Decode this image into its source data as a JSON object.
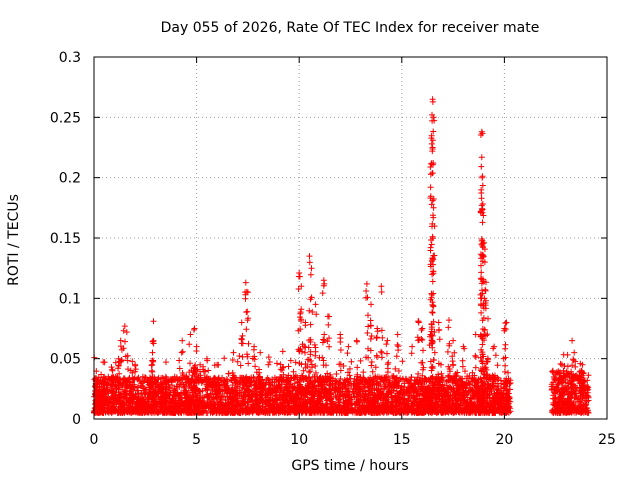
{
  "chart_data": {
    "type": "scatter",
    "title": "Day 055 of 2026, Rate Of TEC Index for receiver mate",
    "xlabel": "GPS time / hours",
    "ylabel": "ROTI / TECUs",
    "xlim": [
      0,
      25
    ],
    "ylim": [
      0,
      0.3
    ],
    "xticks": [
      0,
      5,
      10,
      15,
      20,
      25
    ],
    "yticks": [
      0,
      0.05,
      0.1,
      0.15,
      0.2,
      0.25,
      0.3
    ],
    "xtick_labels": [
      "0",
      "5",
      "10",
      "15",
      "20",
      "25"
    ],
    "ytick_labels": [
      "0",
      "0.05",
      "0.1",
      "0.15",
      "0.2",
      "0.25",
      "0.3"
    ],
    "grid": true,
    "marker": "+",
    "color": "#ff0000",
    "series": [
      {
        "name": "ROTI",
        "segments": [
          {
            "x_range": [
              0.0,
              20.3
            ],
            "base": [
              0.005,
              0.035
            ]
          },
          {
            "x_range": [
              22.3,
              24.1
            ],
            "base": [
              0.005,
              0.04
            ]
          }
        ],
        "peaks": [
          {
            "x": 0.1,
            "y": 0.032
          },
          {
            "x": 0.9,
            "y": 0.04
          },
          {
            "x": 1.2,
            "y": 0.05
          },
          {
            "x": 1.3,
            "y": 0.065
          },
          {
            "x": 1.5,
            "y": 0.077
          },
          {
            "x": 1.6,
            "y": 0.072
          },
          {
            "x": 2.0,
            "y": 0.045
          },
          {
            "x": 2.9,
            "y": 0.081
          },
          {
            "x": 2.85,
            "y": 0.055
          },
          {
            "x": 3.5,
            "y": 0.035
          },
          {
            "x": 4.3,
            "y": 0.065
          },
          {
            "x": 4.7,
            "y": 0.07
          },
          {
            "x": 4.9,
            "y": 0.075
          },
          {
            "x": 5.0,
            "y": 0.06
          },
          {
            "x": 5.5,
            "y": 0.05
          },
          {
            "x": 6.0,
            "y": 0.045
          },
          {
            "x": 6.8,
            "y": 0.055
          },
          {
            "x": 7.2,
            "y": 0.08
          },
          {
            "x": 7.4,
            "y": 0.113
          },
          {
            "x": 7.5,
            "y": 0.105
          },
          {
            "x": 7.8,
            "y": 0.06
          },
          {
            "x": 8.1,
            "y": 0.055
          },
          {
            "x": 9.2,
            "y": 0.056
          },
          {
            "x": 10.0,
            "y": 0.121
          },
          {
            "x": 10.1,
            "y": 0.11
          },
          {
            "x": 10.3,
            "y": 0.08
          },
          {
            "x": 10.5,
            "y": 0.135
          },
          {
            "x": 10.6,
            "y": 0.125
          },
          {
            "x": 10.8,
            "y": 0.095
          },
          {
            "x": 11.2,
            "y": 0.115
          },
          {
            "x": 11.4,
            "y": 0.085
          },
          {
            "x": 12.0,
            "y": 0.07
          },
          {
            "x": 12.4,
            "y": 0.06
          },
          {
            "x": 12.8,
            "y": 0.065
          },
          {
            "x": 13.3,
            "y": 0.112
          },
          {
            "x": 13.5,
            "y": 0.095
          },
          {
            "x": 13.8,
            "y": 0.075
          },
          {
            "x": 14.0,
            "y": 0.11
          },
          {
            "x": 14.3,
            "y": 0.065
          },
          {
            "x": 14.8,
            "y": 0.07
          },
          {
            "x": 15.5,
            "y": 0.06
          },
          {
            "x": 15.8,
            "y": 0.081
          },
          {
            "x": 16.0,
            "y": 0.075
          },
          {
            "x": 16.4,
            "y": 0.07
          },
          {
            "x": 16.5,
            "y": 0.265
          },
          {
            "x": 16.55,
            "y": 0.25
          },
          {
            "x": 16.5,
            "y": 0.225
          },
          {
            "x": 16.45,
            "y": 0.212
          },
          {
            "x": 16.8,
            "y": 0.08
          },
          {
            "x": 17.3,
            "y": 0.082
          },
          {
            "x": 17.5,
            "y": 0.065
          },
          {
            "x": 18.0,
            "y": 0.06
          },
          {
            "x": 18.6,
            "y": 0.07
          },
          {
            "x": 18.9,
            "y": 0.238
          },
          {
            "x": 18.9,
            "y": 0.217
          },
          {
            "x": 18.92,
            "y": 0.2
          },
          {
            "x": 18.9,
            "y": 0.177
          },
          {
            "x": 19.0,
            "y": 0.146
          },
          {
            "x": 19.05,
            "y": 0.13
          },
          {
            "x": 19.1,
            "y": 0.098
          },
          {
            "x": 19.2,
            "y": 0.083
          },
          {
            "x": 19.5,
            "y": 0.06
          },
          {
            "x": 20.0,
            "y": 0.075
          },
          {
            "x": 20.1,
            "y": 0.08
          },
          {
            "x": 22.8,
            "y": 0.045
          },
          {
            "x": 23.3,
            "y": 0.065
          },
          {
            "x": 23.4,
            "y": 0.055
          },
          {
            "x": 23.8,
            "y": 0.045
          }
        ]
      }
    ]
  }
}
